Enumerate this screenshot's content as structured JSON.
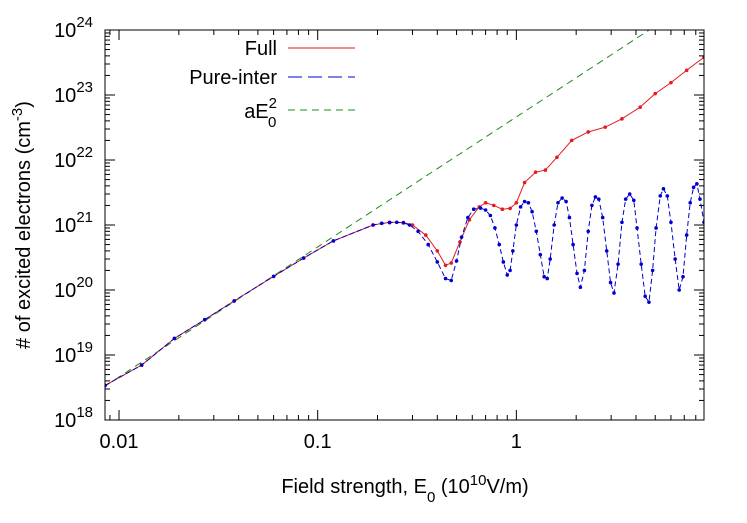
{
  "chart_data": {
    "type": "line",
    "xlabel": "Field strength, E",
    "xlabel_sub": "0",
    "xlabel_unit_open": " (10",
    "xlabel_unit_exp": "10",
    "xlabel_unit_close": "V/m)",
    "ylabel": "# of excited electrons (cm",
    "ylabel_exp": "-3",
    "ylabel_close": ")",
    "x_scale": "log",
    "y_scale": "log",
    "xlim": [
      0.0085,
      8.8
    ],
    "ylim": [
      1e+18,
      1e+24
    ],
    "x_ticks": [
      {
        "value": 0.01,
        "label": "0.01"
      },
      {
        "value": 0.1,
        "label": "0.1"
      },
      {
        "value": 1,
        "label": "1"
      }
    ],
    "y_ticks": [
      {
        "value": 1e+18,
        "base": "10",
        "exp": "18"
      },
      {
        "value": 1e+19,
        "base": "10",
        "exp": "19"
      },
      {
        "value": 1e+20,
        "base": "10",
        "exp": "20"
      },
      {
        "value": 1e+21,
        "base": "10",
        "exp": "21"
      },
      {
        "value": 1e+22,
        "base": "10",
        "exp": "22"
      },
      {
        "value": 1e+23,
        "base": "10",
        "exp": "23"
      },
      {
        "value": 1e+24,
        "base": "10",
        "exp": "24"
      }
    ],
    "grid": false,
    "legend_position": "top-left",
    "series": [
      {
        "name": "Full",
        "color": "#e41a1c",
        "style": "solid",
        "x": [
          0.0085,
          0.013,
          0.019,
          0.027,
          0.038,
          0.06,
          0.085,
          0.12,
          0.19,
          0.23,
          0.27,
          0.3,
          0.35,
          0.4,
          0.44,
          0.47,
          0.52,
          0.58,
          0.65,
          0.7,
          0.77,
          0.85,
          0.93,
          1.0,
          1.1,
          1.25,
          1.4,
          1.6,
          1.9,
          2.3,
          2.8,
          3.4,
          4.2,
          5.0,
          6.0,
          7.2,
          8.8
        ],
        "y": [
          3.4e+18,
          7e+18,
          1.8e+19,
          3.5e+19,
          6.8e+19,
          1.62e+20,
          3.1e+20,
          5.7e+20,
          1e+21,
          1.1e+21,
          1.09e+21,
          1e+21,
          7e+20,
          4e+20,
          2.4e+20,
          2.6e+20,
          5.5e+20,
          1.2e+21,
          1.9e+21,
          2.2e+21,
          2e+21,
          1.75e+21,
          1.8e+21,
          2.2e+21,
          4.5e+21,
          6.5e+21,
          7e+21,
          1.1e+22,
          2e+22,
          2.7e+22,
          3.2e+22,
          4.3e+22,
          6.5e+22,
          1.05e+23,
          1.55e+23,
          2.4e+23,
          3.8e+23
        ]
      },
      {
        "name": "Pure-inter",
        "color": "#0000d0",
        "style": "dashed",
        "x": [
          0.0085,
          0.013,
          0.019,
          0.027,
          0.038,
          0.06,
          0.085,
          0.12,
          0.19,
          0.21,
          0.23,
          0.25,
          0.27,
          0.29,
          0.32,
          0.36,
          0.4,
          0.44,
          0.47,
          0.5,
          0.53,
          0.57,
          0.61,
          0.66,
          0.7,
          0.74,
          0.78,
          0.82,
          0.86,
          0.9,
          0.93,
          0.96,
          1.0,
          1.05,
          1.1,
          1.15,
          1.2,
          1.26,
          1.32,
          1.38,
          1.43,
          1.48,
          1.55,
          1.62,
          1.7,
          1.78,
          1.85,
          1.93,
          2.02,
          2.1,
          2.2,
          2.3,
          2.4,
          2.5,
          2.6,
          2.72,
          2.85,
          2.98,
          3.1,
          3.25,
          3.4,
          3.55,
          3.72,
          3.9,
          4.05,
          4.25,
          4.45,
          4.65,
          4.85,
          5.05,
          5.3,
          5.5,
          5.75,
          6.0,
          6.3,
          6.6,
          6.9,
          7.2,
          7.5,
          7.8,
          8.1,
          8.4,
          8.8
        ],
        "y": [
          3.4e+18,
          7e+18,
          1.8e+19,
          3.5e+19,
          6.8e+19,
          1.62e+20,
          3.1e+20,
          5.7e+20,
          1e+21,
          1.06e+21,
          1.09e+21,
          1.1e+21,
          1.08e+21,
          1e+21,
          8e+20,
          5e+20,
          2.7e+20,
          1.5e+20,
          1.4e+20,
          2.8e+20,
          6.5e+20,
          1.3e+21,
          1.75e+21,
          1.82e+21,
          1.7e+21,
          1.4e+21,
          9e+20,
          5e+20,
          2.7e+20,
          1.7e+20,
          2e+20,
          4e+20,
          1e+21,
          1.9e+21,
          2.3e+21,
          2.2e+21,
          1.6e+21,
          8e+20,
          3.5e+20,
          1.6e+20,
          1.5e+20,
          3e+20,
          1e+21,
          2.2e+21,
          2.6e+21,
          2.3e+21,
          1.3e+21,
          5e+20,
          1.8e+20,
          1.1e+20,
          2e+20,
          8e+20,
          2e+21,
          2.7e+21,
          2.5e+21,
          1.3e+21,
          4e+20,
          1.3e+20,
          9e+19,
          2.5e+20,
          1.1e+21,
          2.5e+21,
          3e+21,
          2.4e+21,
          9e+20,
          2.5e+20,
          8e+19,
          6.5e+19,
          2e+20,
          9e+20,
          2.8e+21,
          3.6e+21,
          2.8e+21,
          1.1e+21,
          3e+20,
          1e+20,
          1.6e+20,
          7e+20,
          2.2e+21,
          3.8e+21,
          4.3e+21,
          2.5e+21,
          1.1e+21
        ]
      },
      {
        "name": "aE",
        "name_sub": "0",
        "name_sup": "2",
        "color": "#1a8c1a",
        "style": "dashed",
        "a": 4.6e+22,
        "x": [
          0.0085,
          0.03,
          0.1,
          0.3,
          1,
          3,
          4.66
        ],
        "y": [
          3.32e+18,
          4.14e+19,
          4.6e+20,
          4.14e+21,
          4.6e+22,
          4.14e+23,
          1e+24
        ]
      }
    ]
  }
}
